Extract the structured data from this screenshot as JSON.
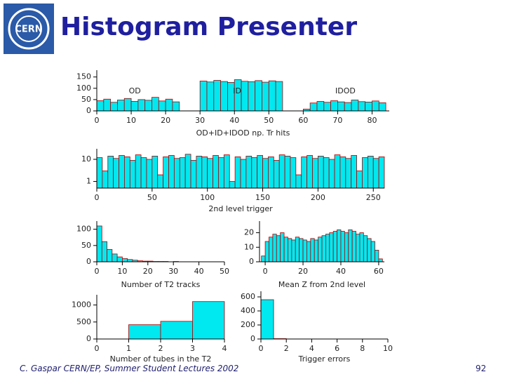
{
  "header": {
    "title": "Histogram Presenter"
  },
  "footer": {
    "author": "C. Gaspar CERN/EP, Summer Student Lectures 2002",
    "page": "92"
  },
  "chart_data": [
    {
      "type": "histogram",
      "xlabel": "OD+ID+IDOD np. Tr hits",
      "annotations": [
        "OD",
        "ID",
        "IDOD"
      ],
      "color": "#00e8f0",
      "edge_color": "#b00000",
      "bins": [
        0,
        2,
        4,
        6,
        8,
        10,
        12,
        14,
        16,
        18,
        20,
        22,
        24,
        26,
        28,
        30,
        32,
        34,
        36,
        38,
        40,
        42,
        44,
        46,
        48,
        50,
        52,
        54,
        56,
        58,
        60,
        62,
        64,
        66,
        68,
        70,
        72,
        74,
        76,
        78,
        80,
        82,
        84
      ],
      "values": [
        45,
        52,
        38,
        48,
        55,
        42,
        50,
        47,
        60,
        44,
        52,
        40,
        0,
        0,
        0,
        132,
        128,
        135,
        130,
        126,
        138,
        131,
        129,
        134,
        127,
        133,
        130,
        0,
        0,
        0,
        8,
        35,
        42,
        38,
        45,
        40,
        37,
        48,
        41,
        39,
        44,
        36
      ],
      "xlim": [
        0,
        85
      ],
      "ylim": [
        0,
        180
      ],
      "xticks": [
        0,
        10,
        20,
        30,
        40,
        50,
        60,
        70,
        80
      ],
      "yticks": [
        0,
        50,
        100,
        150
      ]
    },
    {
      "type": "histogram",
      "xlabel": "2nd level trigger",
      "log_y": true,
      "color": "#00e8f0",
      "edge_color": "#b00000",
      "bins": [
        0,
        5,
        10,
        15,
        20,
        25,
        30,
        35,
        40,
        45,
        50,
        55,
        60,
        65,
        70,
        75,
        80,
        85,
        90,
        95,
        100,
        105,
        110,
        115,
        120,
        125,
        130,
        135,
        140,
        145,
        150,
        155,
        160,
        165,
        170,
        175,
        180,
        185,
        190,
        195,
        200,
        205,
        210,
        215,
        220,
        225,
        230,
        235,
        240,
        245,
        250,
        255,
        260
      ],
      "values": [
        12,
        3,
        14,
        11,
        15,
        13,
        9,
        16,
        12,
        10,
        14,
        2,
        13,
        15,
        11,
        12,
        17,
        9,
        14,
        13,
        11,
        15,
        12,
        16,
        1,
        13,
        10,
        14,
        12,
        15,
        11,
        13,
        9,
        16,
        14,
        12,
        2,
        13,
        15,
        11,
        14,
        12,
        10,
        16,
        13,
        11,
        15,
        3,
        12,
        14,
        11,
        13
      ],
      "xlim": [
        0,
        260
      ],
      "ylim": [
        0.5,
        30
      ],
      "xticks": [
        0,
        50,
        100,
        150,
        200,
        250
      ],
      "yticks": [
        1,
        10
      ]
    },
    {
      "type": "histogram",
      "xlabel": "Number of T2 tracks",
      "color": "#00e8f0",
      "edge_color": "#b00000",
      "bins": [
        0,
        2,
        4,
        6,
        8,
        10,
        12,
        14,
        16,
        18,
        20,
        22,
        24,
        26,
        28,
        30,
        32,
        34,
        36,
        38,
        40,
        42,
        44,
        46,
        48,
        50
      ],
      "values": [
        110,
        62,
        38,
        24,
        15,
        10,
        7,
        5,
        3,
        2,
        2,
        1,
        1,
        1,
        0,
        1,
        0,
        0,
        0,
        0,
        0,
        0,
        0,
        0,
        0
      ],
      "xlim": [
        0,
        50
      ],
      "ylim": [
        0,
        125
      ],
      "xticks": [
        0,
        10,
        20,
        30,
        40,
        50
      ],
      "yticks": [
        0,
        50,
        100
      ]
    },
    {
      "type": "histogram",
      "xlabel": "Mean Z from 2nd level",
      "color": "#00e8f0",
      "edge_color": "#b00000",
      "bins": [
        -2,
        0,
        2,
        4,
        6,
        8,
        10,
        12,
        14,
        16,
        18,
        20,
        22,
        24,
        26,
        28,
        30,
        32,
        34,
        36,
        38,
        40,
        42,
        44,
        46,
        48,
        50,
        52,
        54,
        56,
        58,
        60,
        62
      ],
      "values": [
        4,
        14,
        17,
        19,
        18,
        20,
        17,
        16,
        15,
        17,
        16,
        15,
        14,
        16,
        15,
        17,
        18,
        19,
        20,
        21,
        22,
        21,
        20,
        22,
        21,
        19,
        20,
        18,
        16,
        14,
        8,
        2
      ],
      "xlim": [
        -3,
        63
      ],
      "ylim": [
        0,
        28
      ],
      "xticks": [
        0,
        20,
        40,
        60
      ],
      "yticks": [
        0,
        10,
        20
      ]
    },
    {
      "type": "histogram",
      "xlabel": "Number of tubes in the T2",
      "color": "#00e8f0",
      "edge_color": "#b00000",
      "bins": [
        0,
        1,
        2,
        3,
        4
      ],
      "values": [
        0,
        420,
        520,
        1100
      ],
      "xlim": [
        0,
        4
      ],
      "ylim": [
        0,
        1300
      ],
      "xticks": [
        0,
        1,
        2,
        3,
        4
      ],
      "yticks": [
        0,
        500,
        1000
      ]
    },
    {
      "type": "histogram",
      "xlabel": "Trigger errors",
      "color": "#00e8f0",
      "edge_color": "#b00000",
      "bins": [
        0,
        1,
        2,
        3,
        4,
        5,
        6,
        7,
        8,
        9,
        10
      ],
      "values": [
        560,
        5,
        0,
        0,
        0,
        0,
        0,
        0,
        0,
        0
      ],
      "xlim": [
        0,
        10
      ],
      "ylim": [
        0,
        680
      ],
      "xticks": [
        0,
        2,
        4,
        6,
        8,
        10
      ],
      "yticks": [
        0,
        200,
        400,
        600
      ]
    }
  ]
}
